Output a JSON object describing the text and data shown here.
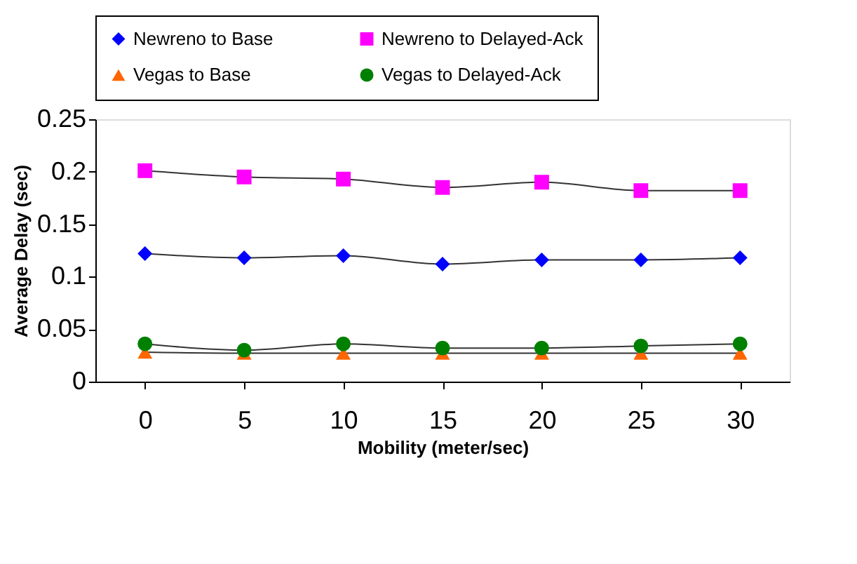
{
  "chart_data": {
    "type": "line",
    "xlabel": "Mobility (meter/sec)",
    "ylabel": "Average Delay (sec)",
    "categories": [
      "0",
      "5",
      "10",
      "15",
      "20",
      "25",
      "30"
    ],
    "series": [
      {
        "name": "Newreno to Base",
        "color": "#0000ff",
        "marker": "diamond",
        "values": [
          0.122,
          0.118,
          0.12,
          0.112,
          0.116,
          0.116,
          0.118
        ]
      },
      {
        "name": "Newreno to Delayed-Ack",
        "color": "#ff00ff",
        "marker": "square",
        "values": [
          0.201,
          0.195,
          0.193,
          0.185,
          0.19,
          0.182,
          0.182
        ]
      },
      {
        "name": "Vegas to Base",
        "color": "#ff6600",
        "marker": "triangle",
        "values": [
          0.028,
          0.027,
          0.027,
          0.027,
          0.027,
          0.027,
          0.027
        ]
      },
      {
        "name": "Vegas to Delayed-Ack",
        "color": "#008000",
        "marker": "circle",
        "values": [
          0.036,
          0.03,
          0.036,
          0.032,
          0.032,
          0.034,
          0.036
        ]
      }
    ],
    "ylim": [
      0,
      0.25
    ],
    "yticks": [
      0,
      0.05,
      0.1,
      0.15,
      0.2,
      0.25
    ],
    "grid": false,
    "legend": "top",
    "line_style": "solid"
  }
}
